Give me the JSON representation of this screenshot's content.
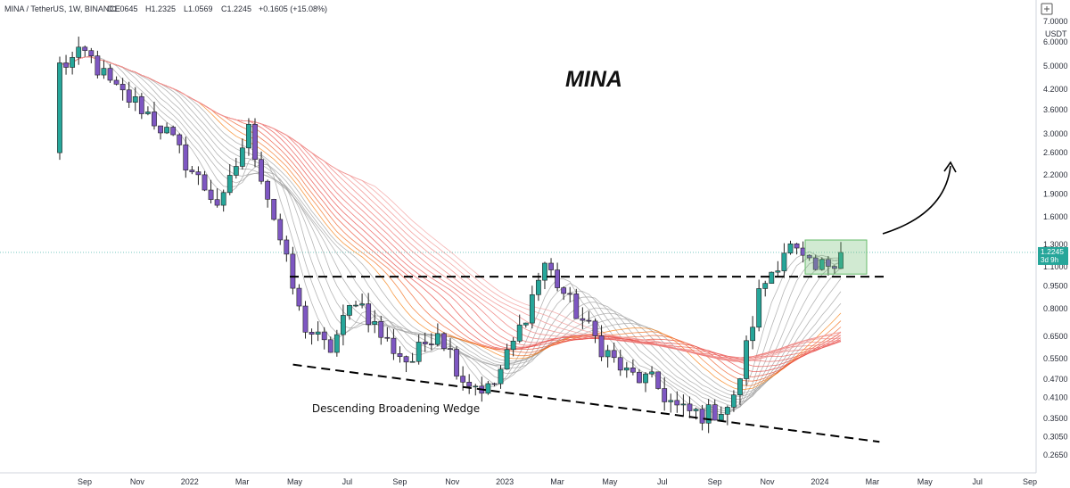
{
  "header": {
    "symbol": "MINA / TetherUS, 1W, BINANCE",
    "open": "O1.0645",
    "high": "H1.2325",
    "low": "L1.0569",
    "close": "C1.2245",
    "change": "+0.1605 (+15.08%)"
  },
  "chart_data": {
    "type": "candlestick",
    "title": "MINA",
    "annotation": "Descending Broadening Wedge",
    "currency": "USDT",
    "y_scale": "log",
    "ylim": [
      0.235,
      7.7
    ],
    "y_ticks": [
      "7.0000",
      "6.0000",
      "5.0000",
      "4.2000",
      "3.6000",
      "3.0000",
      "2.6000",
      "2.2000",
      "1.9000",
      "1.6000",
      "1.3000",
      "1.1000",
      "0.9500",
      "0.8000",
      "0.6500",
      "0.5500",
      "0.4700",
      "0.4100",
      "0.3500",
      "0.3050",
      "0.2650"
    ],
    "x_ticks": [
      "Sep",
      "Nov",
      "2022",
      "Mar",
      "May",
      "Jul",
      "Sep",
      "Nov",
      "2023",
      "Mar",
      "May",
      "Jul",
      "Sep",
      "Nov",
      "2024",
      "Mar",
      "May",
      "Jul",
      "Sep"
    ],
    "last_price": "1.2245",
    "countdown": "3d 9h",
    "resistance_level": 1.02,
    "lower_trendline": [
      {
        "date": "2022-05",
        "price": 0.525
      },
      {
        "date": "2024-03",
        "price": 0.293
      }
    ],
    "range_box": {
      "from": "2023-12",
      "to": "2024-02",
      "low": 1.04,
      "high": 1.345
    },
    "price_path": [
      5.0,
      5.5,
      4.2,
      3.7,
      3.0,
      2.2,
      1.72,
      3.1,
      1.55,
      0.72,
      0.58,
      0.88,
      0.64,
      0.53,
      0.7,
      0.47,
      0.43,
      0.66,
      1.13,
      0.82,
      0.62,
      0.49,
      0.46,
      0.37,
      0.36,
      0.39,
      0.92,
      1.3,
      1.05,
      1.22
    ],
    "colors": {
      "up": "#26a69a",
      "down": "#7e57c2",
      "ribbon_red": "#e53935",
      "ribbon_orange": "#fb8c00",
      "ribbon_gray": "#9e9e9e",
      "box": "#66bb6a",
      "price_line": "#26a69a"
    }
  }
}
